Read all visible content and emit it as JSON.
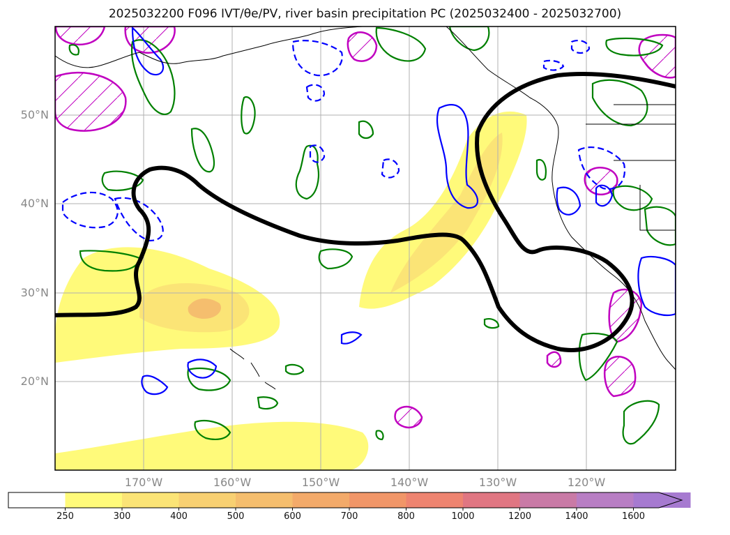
{
  "title": "2025032200 F096 IVT/θe/PV, river basin precipitation PC (2025032400 - 2025032700)",
  "lat_labels": [
    "50°N",
    "40°N",
    "30°N",
    "20°N"
  ],
  "lon_labels": [
    "170°W",
    "160°W",
    "150°W",
    "140°W",
    "130°W",
    "120°W"
  ],
  "colorbar": {
    "ticks": [
      "250",
      "300",
      "400",
      "500",
      "600",
      "700",
      "800",
      "1000",
      "1200",
      "1400",
      "1600"
    ],
    "colors": [
      "#ffffff",
      "#fffa7a",
      "#fbe476",
      "#f8d072",
      "#f5be6e",
      "#f3aa6a",
      "#f19668",
      "#ee8470",
      "#e07682",
      "#c97aa6",
      "#b87ec4",
      "#a67ad0"
    ],
    "extend": "max"
  },
  "legend_colors": {
    "ivt_fill": "#fffa7a",
    "ivt_core": "#f5be6e",
    "thick_contour": "#000000",
    "green_contour": "#008000",
    "blue_contour": "#0000ff",
    "magenta_contour": "#c000c0",
    "grid": "#b0b0b0",
    "coastline": "#000000"
  }
}
